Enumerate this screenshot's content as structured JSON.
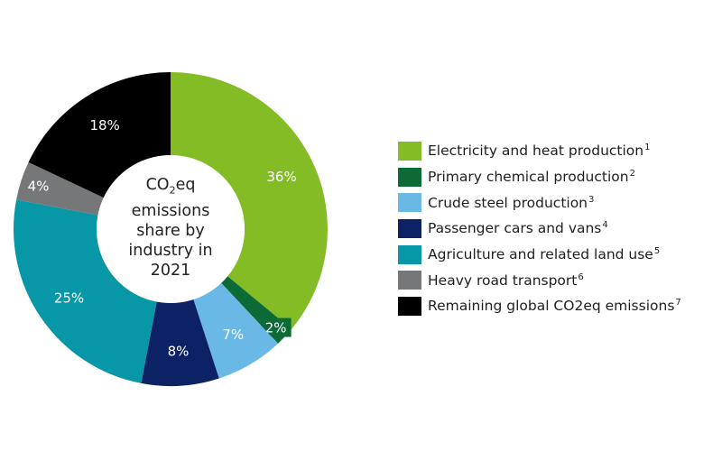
{
  "chart_data": {
    "type": "pie",
    "variant": "donut",
    "title": "CO2eq emissions share by industry in 2021",
    "center_label_lines": [
      "CO",
      "2",
      "eq",
      "emissions",
      "share by",
      "industry in",
      "2021"
    ],
    "categories": [
      "Electricity and heat production",
      "Primary chemical production",
      "Crude steel production",
      "Passenger cars and vans",
      "Agriculture and related land use",
      "Heavy road transport",
      "Remaining global CO2eq emissions"
    ],
    "values": [
      36,
      2,
      7,
      8,
      25,
      4,
      18
    ],
    "unit": "%",
    "footnotes": [
      "1",
      "2",
      "3",
      "4",
      "5",
      "6",
      "7"
    ],
    "colors": [
      "#84bc26",
      "#0b6a35",
      "#6ab8e6",
      "#0c2265",
      "#0897a6",
      "#757778",
      "#000000"
    ],
    "value_labels": [
      "36%",
      "2%",
      "7%",
      "8%",
      "25%",
      "4%",
      "18%"
    ],
    "legend_position": "right",
    "start_angle_deg": 0,
    "direction": "clockwise"
  },
  "center": {
    "line1_main": "CO",
    "line1_sub": "2",
    "line1_tail": "eq",
    "line2": "emissions",
    "line3": "share by",
    "line4": "industry in",
    "line5": "2021"
  },
  "legend": {
    "items": [
      {
        "label": "Electricity and heat production",
        "sup": "1",
        "color": "#84bc26"
      },
      {
        "label": "Primary chemical production",
        "sup": "2",
        "color": "#0b6a35"
      },
      {
        "label": "Crude steel production",
        "sup": "3",
        "color": "#6ab8e6"
      },
      {
        "label": "Passenger cars and vans",
        "sup": "4",
        "color": "#0c2265"
      },
      {
        "label": "Agriculture and related land use",
        "sup": "5",
        "color": "#0897a6"
      },
      {
        "label": "Heavy road transport",
        "sup": "6",
        "color": "#757778"
      },
      {
        "label": "Remaining global CO2eq emissions",
        "sup": "7",
        "color": "#000000"
      }
    ]
  }
}
